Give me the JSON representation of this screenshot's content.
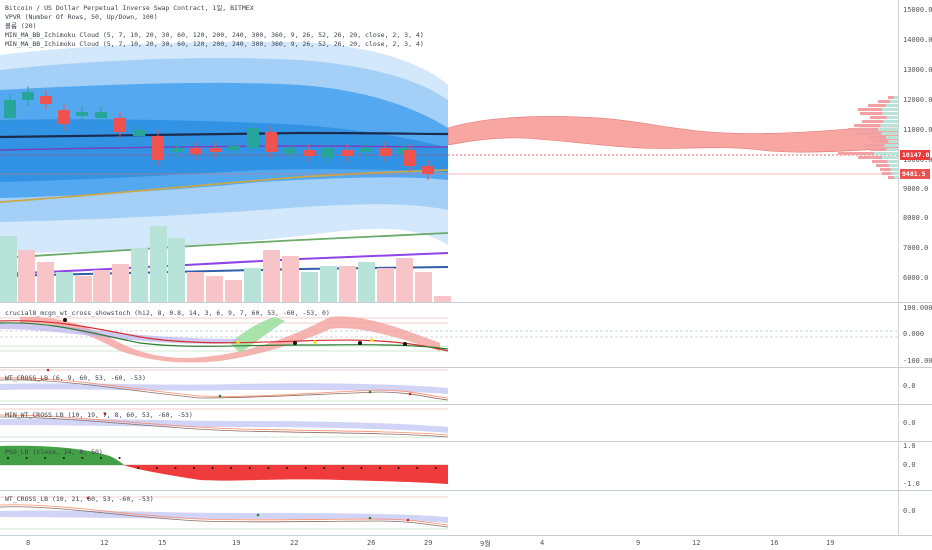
{
  "header": {
    "title": "Bitcoin / US Dollar Perpetual Inverse Swap Contract, 1일, BITMEX",
    "indicators": [
      "VPVR (Number Of Rows, 50, Up/Down, 100)",
      "볼륨 (20)",
      "MIN_MA_BB_Ichimoku Cloud (5, 7, 10, 20, 30, 60, 120, 200, 240, 300, 360, 9, 26, 52, 26, 20, close, 2, 3, 4)",
      "MIN_MA_BB_Ichimoku Cloud (5, 7, 10, 20, 30, 60, 120, 200, 240, 300, 360, 9, 26, 52, 26, 20, close, 2, 3, 4)"
    ]
  },
  "main_axis": [
    "15000.0",
    "14000.0",
    "13000.0",
    "12000.0",
    "11000.0",
    "10000.0",
    "9000.0",
    "8000.0",
    "7000.0",
    "6000.0"
  ],
  "price_labels": {
    "current": "10147.0",
    "other": "9481.5",
    "current_color": "#e83b3b",
    "other_color": "#e83b3b"
  },
  "panes": [
    {
      "label": "crucial8_mcgn_wt_cross_showstoch (hi2, 8, 0.8, 14, 3, 6, 9, 7, 60, 53, -60, -53, 0)",
      "axis": [
        "100.000",
        "0.000",
        "-100.000"
      ]
    },
    {
      "label": "WT_CROSS_LB (6, 9, 60, 53, -60, -53)",
      "axis": [
        "0.0"
      ]
    },
    {
      "label": "MIN_WT_CROSS_LB (10, 19, 7, 8, 60, 53, -60, -53)",
      "axis": [
        "0.0"
      ]
    },
    {
      "label": "PSO_LB (close, 14, 0, 50)",
      "axis": [
        "1.0",
        "0.0",
        "-1.0"
      ]
    },
    {
      "label": "WT_CROSS_LB (10, 21, 60, 53, -60, -53)",
      "axis": [
        "0.0"
      ]
    }
  ],
  "x_axis": [
    "8",
    "12",
    "15",
    "19",
    "22",
    "26",
    "29",
    "9월",
    "4",
    "9",
    "12",
    "16",
    "19"
  ],
  "colors": {
    "up": "#26a69a",
    "down": "#ef5350",
    "cloud_red": "#f28b82",
    "band_blue": "#1e88e5",
    "grid": "#eef0f3"
  }
}
